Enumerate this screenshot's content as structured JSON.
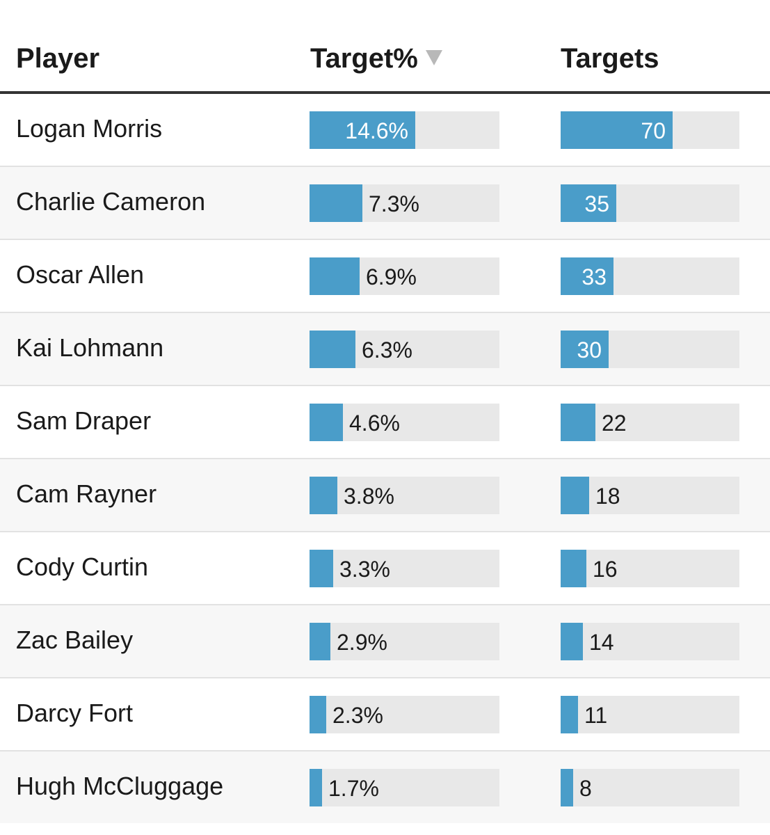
{
  "headers": {
    "player": "Player",
    "target_pct": "Target%",
    "targets": "Targets"
  },
  "sort": {
    "column": "Target%",
    "direction": "descending",
    "icon": "sort-down-triangle"
  },
  "colors": {
    "bar": "#4a9dc9",
    "track": "#e8e8e8",
    "header_rule": "#333333",
    "row_alt": "#f7f7f7"
  },
  "chart_data": {
    "type": "table",
    "columns": [
      "Player",
      "Target%",
      "Targets"
    ],
    "bar_scales": {
      "target_pct_max": 26.2,
      "targets_max": 112
    },
    "rows": [
      {
        "player": "Logan Morris",
        "target_pct": 14.6,
        "target_pct_label": "14.6%",
        "targets": 70,
        "targets_label": "70"
      },
      {
        "player": "Charlie Cameron",
        "target_pct": 7.3,
        "target_pct_label": "7.3%",
        "targets": 35,
        "targets_label": "35"
      },
      {
        "player": "Oscar Allen",
        "target_pct": 6.9,
        "target_pct_label": "6.9%",
        "targets": 33,
        "targets_label": "33"
      },
      {
        "player": "Kai Lohmann",
        "target_pct": 6.3,
        "target_pct_label": "6.3%",
        "targets": 30,
        "targets_label": "30"
      },
      {
        "player": "Sam Draper",
        "target_pct": 4.6,
        "target_pct_label": "4.6%",
        "targets": 22,
        "targets_label": "22"
      },
      {
        "player": "Cam Rayner",
        "target_pct": 3.8,
        "target_pct_label": "3.8%",
        "targets": 18,
        "targets_label": "18"
      },
      {
        "player": "Cody Curtin",
        "target_pct": 3.3,
        "target_pct_label": "3.3%",
        "targets": 16,
        "targets_label": "16"
      },
      {
        "player": "Zac Bailey",
        "target_pct": 2.9,
        "target_pct_label": "2.9%",
        "targets": 14,
        "targets_label": "14"
      },
      {
        "player": "Darcy Fort",
        "target_pct": 2.3,
        "target_pct_label": "2.3%",
        "targets": 11,
        "targets_label": "11"
      },
      {
        "player": "Hugh McCluggage",
        "target_pct": 1.7,
        "target_pct_label": "1.7%",
        "targets": 8,
        "targets_label": "8"
      }
    ]
  }
}
